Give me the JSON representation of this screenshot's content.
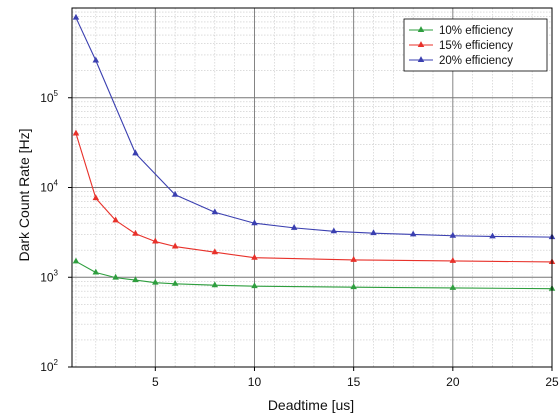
{
  "chart_data": {
    "type": "line",
    "xlabel": "Deadtime [us]",
    "ylabel": "Dark Count Rate [Hz]",
    "xlim": [
      0.8,
      25
    ],
    "ylim": [
      100,
      1000000
    ],
    "yscale": "log",
    "x_ticks": [
      5,
      10,
      15,
      20,
      25
    ],
    "x_tick_labels": [
      "5",
      "10",
      "15",
      "20",
      "25"
    ],
    "y_ticks": [
      100,
      1000,
      10000,
      100000
    ],
    "y_tick_labels": [
      {
        "base": "10",
        "exp": "2"
      },
      {
        "base": "10",
        "exp": "3"
      },
      {
        "base": "10",
        "exp": "4"
      },
      {
        "base": "10",
        "exp": "5"
      }
    ],
    "grid": true,
    "legend": "top-right",
    "series": [
      {
        "name": "10% efficiency",
        "color": "#2e9e3e",
        "x": [
          1,
          2,
          3,
          4,
          5,
          6,
          8,
          10,
          15,
          20,
          25
        ],
        "y": [
          1500,
          1130,
          990,
          930,
          870,
          845,
          815,
          795,
          775,
          760,
          745
        ]
      },
      {
        "name": "15% efficiency",
        "color": "#e8312a",
        "x": [
          1,
          2,
          3,
          4,
          5,
          6,
          8,
          10,
          15,
          20,
          25
        ],
        "y": [
          40000,
          7600,
          4300,
          3050,
          2500,
          2200,
          1900,
          1650,
          1560,
          1520,
          1480
        ]
      },
      {
        "name": "20% efficiency",
        "color": "#3a3fb0",
        "x": [
          1,
          2,
          4,
          6,
          8,
          10,
          12,
          14,
          16,
          18,
          20,
          22,
          25
        ],
        "y": [
          780000,
          260000,
          24000,
          8300,
          5300,
          4000,
          3550,
          3250,
          3100,
          3000,
          2900,
          2850,
          2800
        ]
      }
    ]
  }
}
